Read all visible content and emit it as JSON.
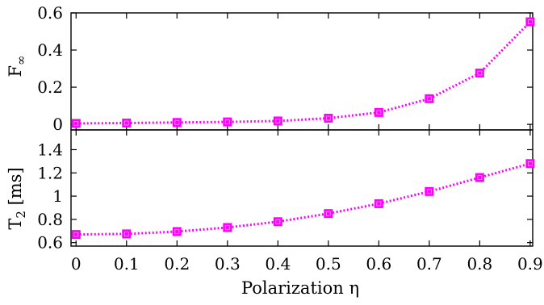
{
  "chart_data": [
    {
      "type": "line",
      "panel": "top",
      "ylabel_html": "F<tspan font-size=\"15\" dy=\"5\">∞</tspan>",
      "ylabel": "F∞",
      "ylim": [
        -0.03,
        0.6
      ],
      "yticks": [
        0,
        0.2,
        0.4,
        0.6
      ],
      "ytick_labels": [
        "0",
        "0.2",
        "0.4",
        "0.6"
      ],
      "xlim": [
        -0.01,
        0.905
      ],
      "x": [
        0,
        0.1,
        0.2,
        0.3,
        0.4,
        0.5,
        0.6,
        0.7,
        0.8,
        0.9
      ],
      "series": [
        {
          "values": [
            0.005,
            0.007,
            0.01,
            0.013,
            0.018,
            0.033,
            0.064,
            0.138,
            0.276,
            0.552
          ]
        }
      ],
      "color": "#ff00ff",
      "marker": "square",
      "line_style": "dotted",
      "grid": false
    },
    {
      "type": "line",
      "panel": "bottom",
      "ylabel": "T2 [ms]",
      "ylim": [
        0.57,
        1.57
      ],
      "yticks": [
        0.6,
        0.8,
        1.0,
        1.2,
        1.4
      ],
      "ytick_labels": [
        "0.6",
        "0.8",
        "1",
        "1.2",
        "1.4"
      ],
      "xlim": [
        -0.01,
        0.905
      ],
      "xticks": [
        0,
        0.1,
        0.2,
        0.3,
        0.4,
        0.5,
        0.6,
        0.7,
        0.8,
        0.9
      ],
      "xtick_labels": [
        "0",
        "0.1",
        "0.2",
        "0.3",
        "0.4",
        "0.5",
        "0.6",
        "0.7",
        "0.8",
        "0.9"
      ],
      "xlabel": "Polarization η",
      "x": [
        0,
        0.1,
        0.2,
        0.3,
        0.4,
        0.5,
        0.6,
        0.7,
        0.8,
        0.9
      ],
      "series": [
        {
          "values": [
            0.67,
            0.675,
            0.695,
            0.73,
            0.78,
            0.85,
            0.935,
            1.04,
            1.16,
            1.28
          ]
        }
      ],
      "color": "#ff00ff",
      "marker": "square",
      "line_style": "dotted",
      "grid": false
    }
  ]
}
